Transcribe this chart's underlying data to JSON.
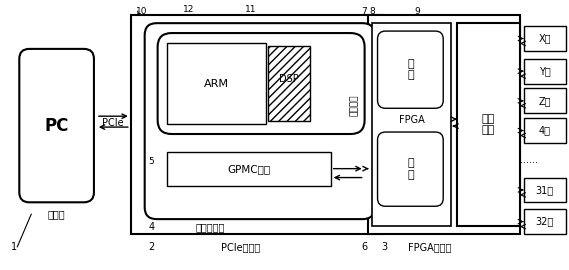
{
  "bg_color": "#ffffff",
  "labels": {
    "pc": "PC",
    "shangweiji": "上位机",
    "pcie": "PCIe",
    "arm": "ARM",
    "dsp": "DSP",
    "gpmc": "GPMC接口",
    "dual_core": "双核处理器",
    "parallel": "并行总线",
    "control": "控\n制",
    "feedback": "反\n馈",
    "fpga": "FPGA",
    "peripheral": "外围\n电路",
    "fpga_board": "FPGA扩展板",
    "pcie_card": "PCIe控制卡",
    "axis": [
      "X轴",
      "Y轴",
      "Z轴",
      "4轴",
      "......",
      "31轴",
      "32轴"
    ],
    "nums": [
      "1",
      "2",
      "3",
      "4",
      "5",
      "6",
      "7",
      "8",
      "9",
      "10",
      "11",
      "12"
    ]
  }
}
